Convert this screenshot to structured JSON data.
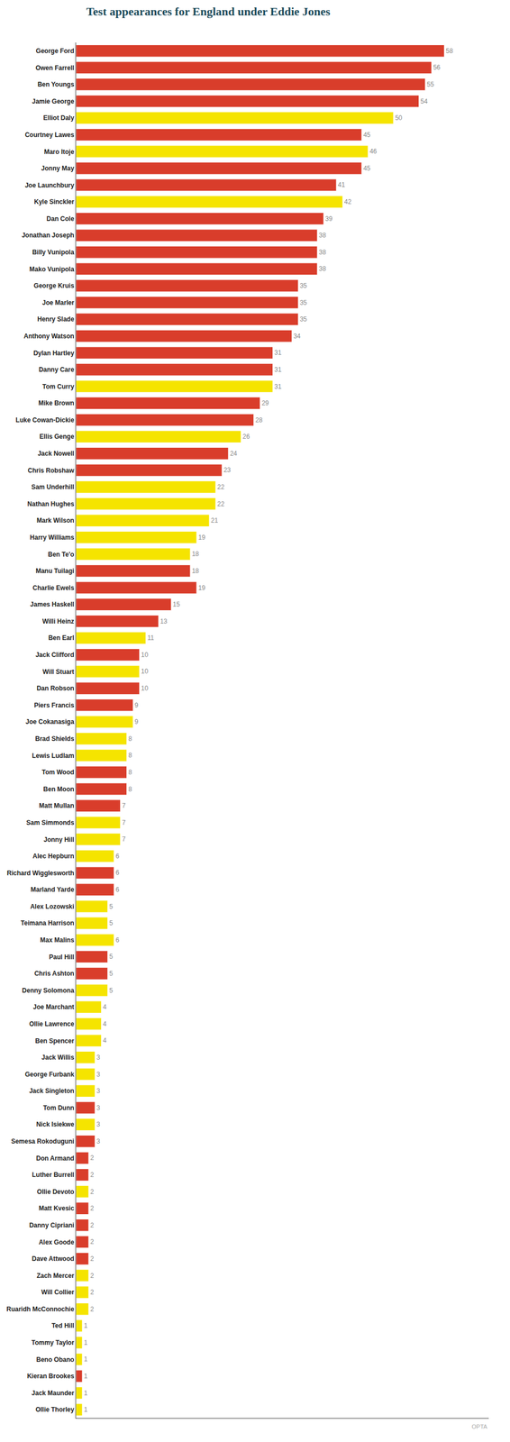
{
  "chart_data": {
    "type": "bar",
    "orientation": "horizontal",
    "title": "Test appearances for England under Eddie Jones",
    "annotations": [
      "OPTA"
    ],
    "categories": [
      "George Ford",
      "Owen Farrell",
      "Ben Youngs",
      "Jamie George",
      "Elliot Daly",
      "Courtney Lawes",
      "Maro Itoje",
      "Jonny May",
      "Joe Launchbury",
      "Kyle Sinckler",
      "Dan Cole",
      "Jonathan Joseph",
      "Billy Vunipola",
      "Mako Vunipola",
      "George Kruis",
      "Joe Marler",
      "Henry Slade",
      "Anthony Watson",
      "Dylan Hartley",
      "Danny Care",
      "Tom Curry",
      "Mike Brown",
      "Luke Cowan-Dickie",
      "Ellis Genge",
      "Jack Nowell",
      "Chris Robshaw",
      "Sam Underhill",
      "Nathan Hughes",
      "Mark Wilson",
      "Harry Williams",
      "Ben Te'o",
      "Manu Tuilagi",
      "Charlie Ewels",
      "James Haskell",
      "Willi Heinz",
      "Ben Earl",
      "Jack Clifford",
      "Will Stuart",
      "Dan Robson",
      "Piers Francis",
      "Joe Cokanasiga",
      "Brad Shields",
      "Lewis Ludlam",
      "Tom Wood",
      "Ben Moon",
      "Matt Mullan",
      "Sam Simmonds",
      "Jonny Hill",
      "Alec Hepburn",
      "Richard Wigglesworth",
      "Marland Yarde",
      "Alex Lozowski",
      "Teimana Harrison",
      "Max Malins",
      "Paul Hill",
      "Chris Ashton",
      "Denny Solomona",
      "Joe Marchant",
      "Ollie Lawrence",
      "Ben Spencer",
      "Jack Willis",
      "George Furbank",
      "Jack Singleton",
      "Tom Dunn",
      "Nick Isiekwe",
      "Semesa Rokoduguni",
      "Don Armand",
      "Luther Burrell",
      "Ollie Devoto",
      "Matt Kvesic",
      "Danny Cipriani",
      "Alex Goode",
      "Dave Attwood",
      "Zach Mercer",
      "Will Collier",
      "Ruaridh McConnochie",
      "Ted Hill",
      "Tommy Taylor",
      "Beno Obano",
      "Kieran Brookes",
      "Jack Maunder",
      "Ollie Thorley"
    ],
    "values": [
      58,
      56,
      55,
      54,
      50,
      45,
      46,
      45,
      41,
      42,
      39,
      38,
      38,
      38,
      35,
      35,
      35,
      34,
      31,
      31,
      31,
      29,
      28,
      26,
      24,
      23,
      22,
      22,
      21,
      19,
      18,
      18,
      19,
      15,
      13,
      11,
      10,
      10,
      10,
      9,
      9,
      8,
      8,
      8,
      8,
      7,
      7,
      7,
      6,
      6,
      6,
      5,
      5,
      6,
      5,
      5,
      5,
      4,
      4,
      4,
      3,
      3,
      3,
      3,
      3,
      3,
      2,
      2,
      2,
      2,
      2,
      2,
      2,
      2,
      2,
      2,
      1,
      1,
      1,
      1,
      1,
      1
    ],
    "colors": [
      "#d93d2b",
      "#d93d2b",
      "#d93d2b",
      "#d93d2b",
      "#f5e400",
      "#d93d2b",
      "#f5e400",
      "#d93d2b",
      "#d93d2b",
      "#f5e400",
      "#d93d2b",
      "#d93d2b",
      "#d93d2b",
      "#d93d2b",
      "#d93d2b",
      "#d93d2b",
      "#d93d2b",
      "#d93d2b",
      "#d93d2b",
      "#d93d2b",
      "#f5e400",
      "#d93d2b",
      "#d93d2b",
      "#f5e400",
      "#d93d2b",
      "#d93d2b",
      "#f5e400",
      "#f5e400",
      "#f5e400",
      "#f5e400",
      "#f5e400",
      "#d93d2b",
      "#d93d2b",
      "#d93d2b",
      "#d93d2b",
      "#f5e400",
      "#d93d2b",
      "#f5e400",
      "#d93d2b",
      "#d93d2b",
      "#f5e400",
      "#f5e400",
      "#f5e400",
      "#d93d2b",
      "#d93d2b",
      "#d93d2b",
      "#f5e400",
      "#f5e400",
      "#f5e400",
      "#d93d2b",
      "#d93d2b",
      "#f5e400",
      "#f5e400",
      "#f5e400",
      "#d93d2b",
      "#d93d2b",
      "#f5e400",
      "#f5e400",
      "#f5e400",
      "#f5e400",
      "#f5e400",
      "#f5e400",
      "#f5e400",
      "#d93d2b",
      "#f5e400",
      "#d93d2b",
      "#d93d2b",
      "#d93d2b",
      "#f5e400",
      "#d93d2b",
      "#d93d2b",
      "#d93d2b",
      "#d93d2b",
      "#f5e400",
      "#f5e400",
      "#f5e400",
      "#f5e400",
      "#f5e400",
      "#f5e400",
      "#d93d2b",
      "#f5e400",
      "#f5e400"
    ],
    "xlim": [
      0,
      65
    ],
    "data_labels": true,
    "grid": false,
    "tick_labels": "y"
  }
}
